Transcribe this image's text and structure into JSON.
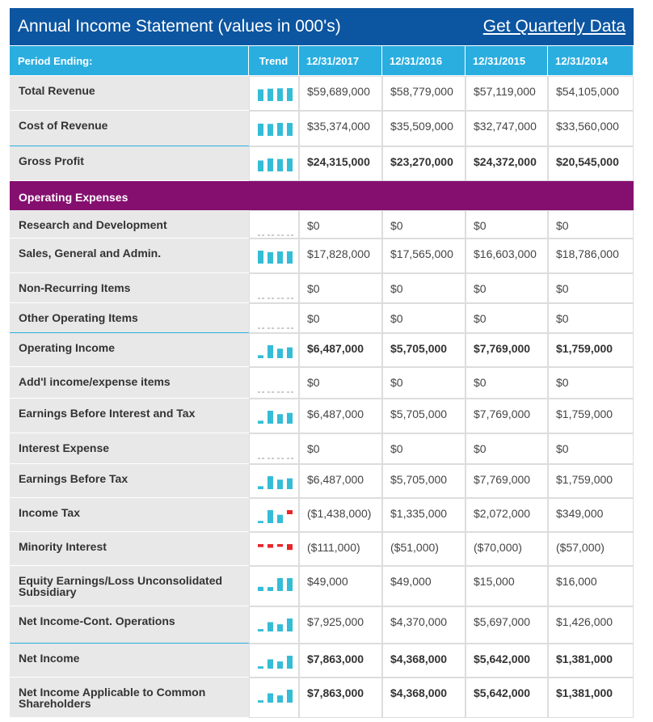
{
  "header": {
    "title": "Annual Income Statement (values in 000's)",
    "link": "Get Quarterly Data"
  },
  "table": {
    "columns": [
      "Period Ending:",
      "Trend",
      "12/31/2017",
      "12/31/2016",
      "12/31/2015",
      "12/31/2014"
    ],
    "rows": [
      {
        "label": "Total Revenue",
        "values": [
          "$59,689,000",
          "$58,779,000",
          "$57,119,000",
          "$54,105,000"
        ]
      },
      {
        "label": "Cost of Revenue",
        "values": [
          "$35,374,000",
          "$35,509,000",
          "$32,747,000",
          "$33,560,000"
        ]
      },
      {
        "label": "Gross Profit",
        "values": [
          "$24,315,000",
          "$23,270,000",
          "$24,372,000",
          "$20,545,000"
        ],
        "bold": true,
        "rule_above": true
      },
      {
        "section": "Operating Expenses"
      },
      {
        "label": "Research and Development",
        "values": [
          "$0",
          "$0",
          "$0",
          "$0"
        ]
      },
      {
        "label": "Sales, General and Admin.",
        "values": [
          "$17,828,000",
          "$17,565,000",
          "$16,603,000",
          "$18,786,000"
        ]
      },
      {
        "label": "Non-Recurring Items",
        "values": [
          "$0",
          "$0",
          "$0",
          "$0"
        ]
      },
      {
        "label": "Other Operating Items",
        "values": [
          "$0",
          "$0",
          "$0",
          "$0"
        ]
      },
      {
        "label": "Operating Income",
        "values": [
          "$6,487,000",
          "$5,705,000",
          "$7,769,000",
          "$1,759,000"
        ],
        "bold": true,
        "rule_above": true
      },
      {
        "label": "Add'l income/expense items",
        "values": [
          "$0",
          "$0",
          "$0",
          "$0"
        ]
      },
      {
        "label": "Earnings Before Interest and Tax",
        "values": [
          "$6,487,000",
          "$5,705,000",
          "$7,769,000",
          "$1,759,000"
        ]
      },
      {
        "label": "Interest Expense",
        "values": [
          "$0",
          "$0",
          "$0",
          "$0"
        ]
      },
      {
        "label": "Earnings Before Tax",
        "values": [
          "$6,487,000",
          "$5,705,000",
          "$7,769,000",
          "$1,759,000"
        ]
      },
      {
        "label": "Income Tax",
        "values": [
          "($1,438,000)",
          "$1,335,000",
          "$2,072,000",
          "$349,000"
        ]
      },
      {
        "label": "Minority Interest",
        "values": [
          "($111,000)",
          "($51,000)",
          "($70,000)",
          "($57,000)"
        ]
      },
      {
        "label": "Equity Earnings/Loss Unconsolidated Subsidiary",
        "values": [
          "$49,000",
          "$49,000",
          "$15,000",
          "$16,000"
        ]
      },
      {
        "label": "Net Income-Cont. Operations",
        "values": [
          "$7,925,000",
          "$4,370,000",
          "$5,697,000",
          "$1,426,000"
        ]
      },
      {
        "label": "Net Income",
        "values": [
          "$7,863,000",
          "$4,368,000",
          "$5,642,000",
          "$1,381,000"
        ],
        "bold": true,
        "rule_above": true
      },
      {
        "label": "Net Income Applicable to Common Shareholders",
        "values": [
          "$7,863,000",
          "$4,368,000",
          "$5,642,000",
          "$1,381,000"
        ],
        "bold": true
      }
    ]
  }
}
